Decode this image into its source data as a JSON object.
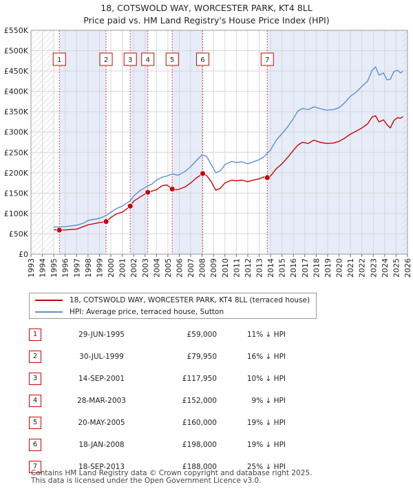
{
  "chart_data": {
    "type": "line",
    "title": "18, COTSWOLD WAY, WORCESTER PARK, KT4 8LL",
    "subtitle": "Price paid vs. HM Land Registry's House Price Index (HPI)",
    "xlim": [
      1993,
      2026
    ],
    "ylim": [
      0,
      550000
    ],
    "x_ticks": [
      1993,
      1994,
      1995,
      1996,
      1997,
      1998,
      1999,
      2000,
      2001,
      2002,
      2003,
      2004,
      2005,
      2006,
      2007,
      2008,
      2009,
      2010,
      2011,
      2012,
      2013,
      2014,
      2015,
      2016,
      2017,
      2018,
      2019,
      2020,
      2021,
      2022,
      2023,
      2024,
      2025,
      2026
    ],
    "y_ticks": [
      {
        "value": 0,
        "label": "£0"
      },
      {
        "value": 50000,
        "label": "£50K"
      },
      {
        "value": 100000,
        "label": "£100K"
      },
      {
        "value": 150000,
        "label": "£150K"
      },
      {
        "value": 200000,
        "label": "£200K"
      },
      {
        "value": 250000,
        "label": "£250K"
      },
      {
        "value": 300000,
        "label": "£300K"
      },
      {
        "value": 350000,
        "label": "£350K"
      },
      {
        "value": 400000,
        "label": "£400K"
      },
      {
        "value": 450000,
        "label": "£450K"
      },
      {
        "value": 500000,
        "label": "£500K"
      },
      {
        "value": 550000,
        "label": "£550K"
      }
    ],
    "series": [
      {
        "name": "18, COTSWOLD WAY, WORCESTER PARK, KT4 8LL (terraced house)",
        "color": "#cc0000",
        "points": [
          [
            1995.0,
            60000
          ],
          [
            1995.49,
            59000
          ],
          [
            1996.0,
            59500
          ],
          [
            1997.0,
            61500
          ],
          [
            1998.0,
            72000
          ],
          [
            1999.0,
            77500
          ],
          [
            1999.58,
            79950
          ],
          [
            2000.0,
            90000
          ],
          [
            2000.5,
            99000
          ],
          [
            2001.0,
            103000
          ],
          [
            2001.7,
            117950
          ],
          [
            2002.0,
            130000
          ],
          [
            2002.6,
            141000
          ],
          [
            2003.24,
            152000
          ],
          [
            2003.6,
            155000
          ],
          [
            2004.0,
            158000
          ],
          [
            2004.5,
            168000
          ],
          [
            2004.9,
            170000
          ],
          [
            2005.38,
            160000
          ],
          [
            2005.8,
            158000
          ],
          [
            2006.5,
            165000
          ],
          [
            2007.0,
            175000
          ],
          [
            2007.5,
            187000
          ],
          [
            2008.05,
            198000
          ],
          [
            2008.4,
            193000
          ],
          [
            2008.8,
            178000
          ],
          [
            2009.2,
            157000
          ],
          [
            2009.6,
            162000
          ],
          [
            2010.0,
            175000
          ],
          [
            2010.6,
            182000
          ],
          [
            2011.0,
            180000
          ],
          [
            2011.5,
            182000
          ],
          [
            2012.0,
            178000
          ],
          [
            2012.6,
            183000
          ],
          [
            2013.0,
            185000
          ],
          [
            2013.45,
            190000
          ],
          [
            2013.71,
            188000
          ],
          [
            2014.0,
            192000
          ],
          [
            2014.5,
            210000
          ],
          [
            2015.0,
            222000
          ],
          [
            2015.5,
            238000
          ],
          [
            2016.0,
            255000
          ],
          [
            2016.4,
            268000
          ],
          [
            2016.8,
            275000
          ],
          [
            2017.3,
            272000
          ],
          [
            2017.8,
            280000
          ],
          [
            2018.3,
            275000
          ],
          [
            2018.9,
            272000
          ],
          [
            2019.5,
            273000
          ],
          [
            2020.0,
            277000
          ],
          [
            2020.5,
            285000
          ],
          [
            2021.0,
            295000
          ],
          [
            2021.5,
            302000
          ],
          [
            2022.0,
            310000
          ],
          [
            2022.5,
            320000
          ],
          [
            2022.9,
            337000
          ],
          [
            2023.2,
            340000
          ],
          [
            2023.5,
            325000
          ],
          [
            2023.9,
            330000
          ],
          [
            2024.2,
            318000
          ],
          [
            2024.5,
            310000
          ],
          [
            2024.8,
            328000
          ],
          [
            2025.1,
            335000
          ],
          [
            2025.4,
            334000
          ],
          [
            2025.6,
            338000
          ]
        ]
      },
      {
        "name": "HPI: Average price, terraced house, Sutton",
        "color": "#5b8fd6",
        "points": [
          [
            1995.0,
            67000
          ],
          [
            1995.5,
            66500
          ],
          [
            1996.0,
            67500
          ],
          [
            1997.0,
            71000
          ],
          [
            1997.6,
            76000
          ],
          [
            1998.0,
            83000
          ],
          [
            1999.0,
            88000
          ],
          [
            1999.6,
            95000
          ],
          [
            2000.0,
            103000
          ],
          [
            2000.5,
            112000
          ],
          [
            2001.0,
            118000
          ],
          [
            2001.7,
            131000
          ],
          [
            2002.0,
            143000
          ],
          [
            2002.6,
            157000
          ],
          [
            2003.2,
            167000
          ],
          [
            2003.6,
            172000
          ],
          [
            2004.0,
            182000
          ],
          [
            2004.5,
            189000
          ],
          [
            2004.9,
            192000
          ],
          [
            2005.4,
            197000
          ],
          [
            2005.9,
            194000
          ],
          [
            2006.5,
            203000
          ],
          [
            2007.0,
            215000
          ],
          [
            2007.5,
            230000
          ],
          [
            2008.0,
            244000
          ],
          [
            2008.4,
            240000
          ],
          [
            2008.8,
            220000
          ],
          [
            2009.2,
            200000
          ],
          [
            2009.6,
            205000
          ],
          [
            2010.0,
            220000
          ],
          [
            2010.6,
            228000
          ],
          [
            2011.0,
            225000
          ],
          [
            2011.5,
            227000
          ],
          [
            2012.0,
            222000
          ],
          [
            2012.6,
            228000
          ],
          [
            2013.0,
            232000
          ],
          [
            2013.45,
            240000
          ],
          [
            2013.71,
            248000
          ],
          [
            2014.0,
            256000
          ],
          [
            2014.5,
            280000
          ],
          [
            2015.0,
            296000
          ],
          [
            2015.5,
            313000
          ],
          [
            2016.0,
            333000
          ],
          [
            2016.4,
            352000
          ],
          [
            2016.8,
            358000
          ],
          [
            2017.3,
            355000
          ],
          [
            2017.8,
            362000
          ],
          [
            2018.3,
            358000
          ],
          [
            2018.9,
            354000
          ],
          [
            2019.5,
            355000
          ],
          [
            2020.0,
            360000
          ],
          [
            2020.5,
            372000
          ],
          [
            2021.0,
            388000
          ],
          [
            2021.5,
            398000
          ],
          [
            2022.0,
            412000
          ],
          [
            2022.5,
            425000
          ],
          [
            2022.9,
            452000
          ],
          [
            2023.2,
            460000
          ],
          [
            2023.5,
            440000
          ],
          [
            2023.9,
            445000
          ],
          [
            2024.2,
            428000
          ],
          [
            2024.5,
            430000
          ],
          [
            2024.8,
            448000
          ],
          [
            2025.1,
            452000
          ],
          [
            2025.4,
            445000
          ],
          [
            2025.6,
            450000
          ]
        ]
      }
    ],
    "sales": [
      {
        "num": "1",
        "date": "29-JUN-1995",
        "price": "£59,000",
        "hpi": "11% ↓ HPI",
        "x": 1995.49,
        "y": 59000
      },
      {
        "num": "2",
        "date": "30-JUL-1999",
        "price": "£79,950",
        "hpi": "16% ↓ HPI",
        "x": 1999.58,
        "y": 79950
      },
      {
        "num": "3",
        "date": "14-SEP-2001",
        "price": "£117,950",
        "hpi": "10% ↓ HPI",
        "x": 2001.7,
        "y": 117950
      },
      {
        "num": "4",
        "date": "28-MAR-2003",
        "price": "£152,000",
        "hpi": "9% ↓ HPI",
        "x": 2003.24,
        "y": 152000
      },
      {
        "num": "5",
        "date": "20-MAY-2005",
        "price": "£160,000",
        "hpi": "19% ↓ HPI",
        "x": 2005.38,
        "y": 160000
      },
      {
        "num": "6",
        "date": "18-JAN-2008",
        "price": "£198,000",
        "hpi": "19% ↓ HPI",
        "x": 2008.05,
        "y": 198000
      },
      {
        "num": "7",
        "date": "18-SEP-2013",
        "price": "£188,000",
        "hpi": "25% ↓ HPI",
        "x": 2013.71,
        "y": 188000
      }
    ],
    "shaded_spans": [
      [
        1995.49,
        1999.58
      ],
      [
        2001.7,
        2003.24
      ],
      [
        2005.38,
        2008.05
      ],
      [
        2013.71,
        2026
      ]
    ],
    "hatched_spans": [
      [
        1993,
        1995.0
      ],
      [
        2025.6,
        2026
      ]
    ]
  },
  "footer": {
    "line1": "Contains HM Land Registry data © Crown copyright and database right 2025.",
    "line2": "This data is licensed under the Open Government Licence v3.0."
  }
}
